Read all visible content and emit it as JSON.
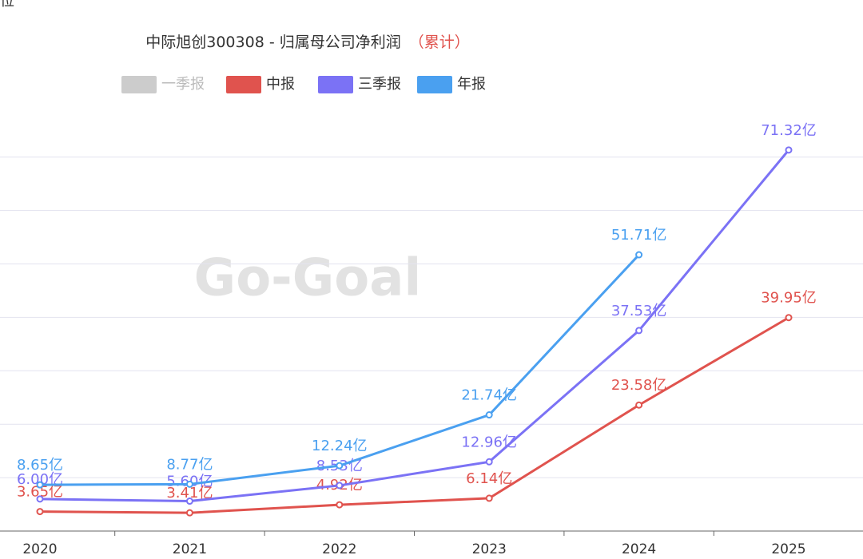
{
  "chart_data": {
    "type": "line",
    "unit": "位",
    "title": "中际旭创300308 - 归属母公司净利润",
    "title_note": "（累计）",
    "watermark": "Go-Goal",
    "categories": [
      "2020",
      "2021",
      "2022",
      "2023",
      "2024",
      "2025"
    ],
    "series": [
      {
        "name": "一季报",
        "color": "#cccccc",
        "values": [
          null,
          null,
          null,
          null,
          null,
          null
        ]
      },
      {
        "name": "中报",
        "color": "#e0534e",
        "values": [
          3.65,
          3.41,
          4.92,
          6.14,
          23.58,
          39.95
        ],
        "value_labels": [
          "3.65亿",
          "3.41亿",
          "4.92亿",
          "6.14亿",
          "23.58亿",
          "39.95亿"
        ]
      },
      {
        "name": "三季报",
        "color": "#7b72f5",
        "values": [
          6.0,
          5.6,
          8.53,
          12.96,
          37.53,
          71.32
        ],
        "value_labels": [
          "6.00亿",
          "5.60亿",
          "8.53亿",
          "12.96亿",
          "37.53亿",
          "71.32亿"
        ]
      },
      {
        "name": "年报",
        "color": "#4aa0f0",
        "values": [
          8.65,
          8.77,
          12.24,
          21.74,
          51.71,
          null
        ],
        "value_labels": [
          "8.65亿",
          "8.77亿",
          "12.24亿",
          "21.74亿",
          "51.71亿",
          null
        ]
      }
    ],
    "ylim": [
      0,
      80
    ],
    "yticks": [
      0,
      10,
      20,
      30,
      40,
      50,
      60,
      70
    ],
    "grid": true
  }
}
